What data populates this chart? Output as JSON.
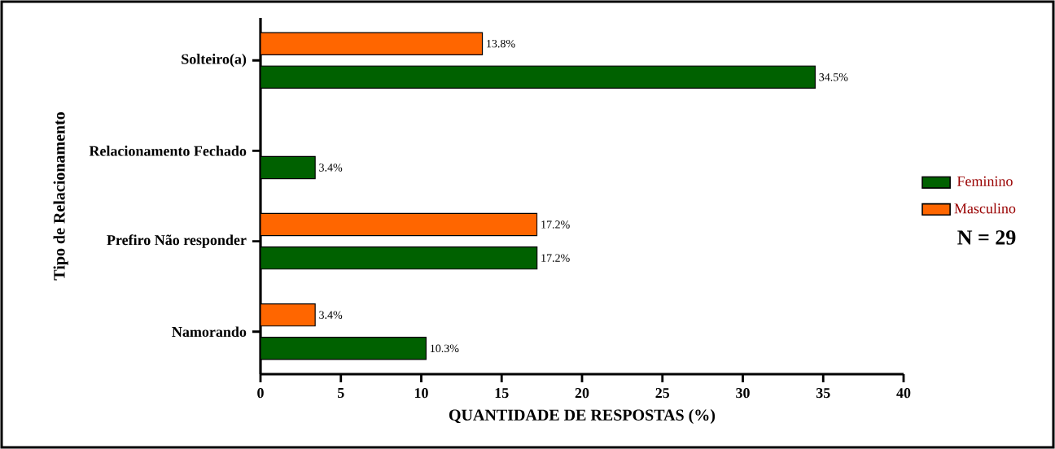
{
  "chart_data": {
    "type": "bar",
    "orientation": "horizontal",
    "categories": [
      "Solteiro(a)",
      "Relacionamento Fechado",
      "Prefiro Não responder",
      "Namorando"
    ],
    "series": [
      {
        "name": "Feminino",
        "color": "#006100",
        "values": [
          34.5,
          3.4,
          17.2,
          10.3
        ],
        "value_labels": [
          "34.5%",
          "3.4%",
          "17.2%",
          "10.3%"
        ]
      },
      {
        "name": "Masculino",
        "color": "#ff6600",
        "values": [
          13.8,
          null,
          17.2,
          3.4
        ],
        "value_labels": [
          "13.8%",
          null,
          "17.2%",
          "3.4%"
        ]
      }
    ],
    "xlim": [
      0,
      40
    ],
    "xticks": [
      0,
      5,
      10,
      15,
      20,
      25,
      30,
      35,
      40
    ],
    "xlabel": "QUANTIDADE DE RESPOSTAS (%)",
    "ylabel": "Tipo de Relacionamento",
    "legend": "right",
    "grid": false,
    "annotations": [
      "N = 29"
    ]
  }
}
